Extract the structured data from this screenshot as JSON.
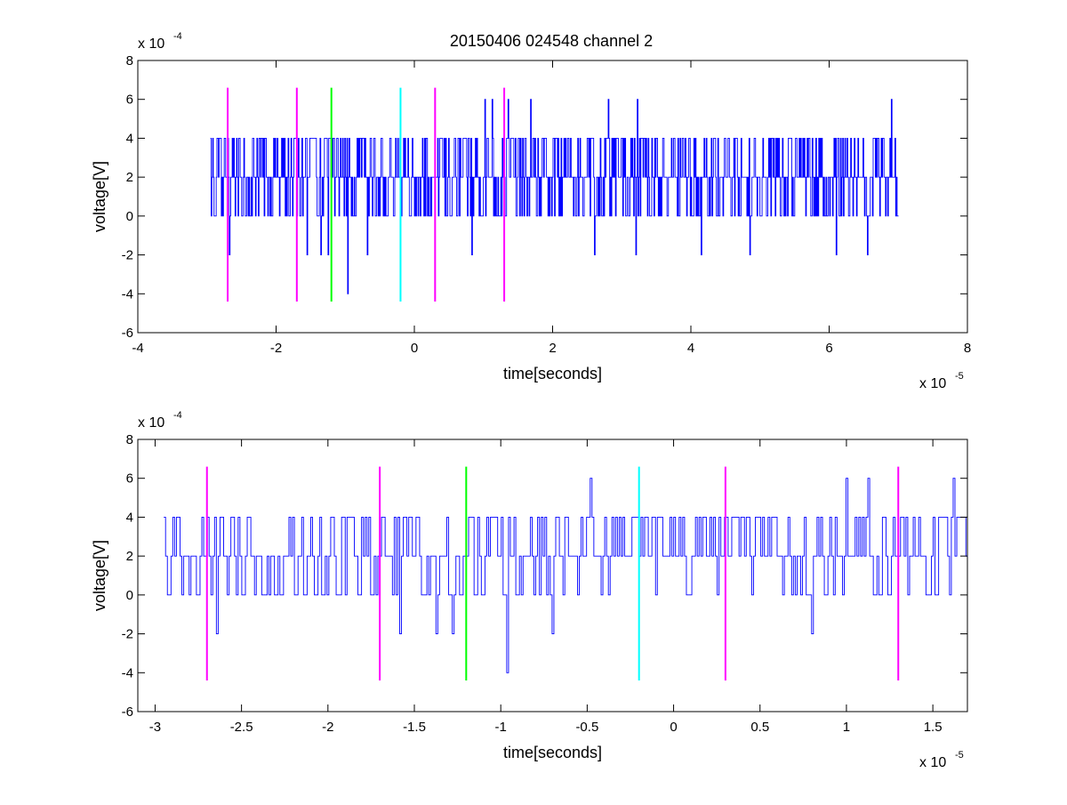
{
  "figure_title": "20150406 024548 channel 2",
  "colors": {
    "signal": "#0000ff",
    "marker_magenta": "#ff00ff",
    "marker_green": "#00ff00",
    "marker_cyan": "#00ffff",
    "axes": "#000000",
    "background": "#ffffff"
  },
  "chart_data": [
    {
      "type": "line",
      "title": "20150406 024548 channel 2",
      "xlabel": "time[seconds]",
      "ylabel": "voltage[V]",
      "x_exponent_base": "x 10",
      "x_exponent_power": "-5",
      "y_exponent_base": "x 10",
      "y_exponent_power": "-4",
      "xlim": [
        -4,
        8
      ],
      "ylim": [
        -6,
        8
      ],
      "xticks": [
        -4,
        -2,
        0,
        2,
        4,
        6,
        8
      ],
      "xtick_labels": [
        "-4",
        "-2",
        "0",
        "2",
        "4",
        "6",
        "8"
      ],
      "yticks": [
        -6,
        -4,
        -2,
        0,
        2,
        4,
        6,
        8
      ],
      "ytick_labels": [
        "-6",
        "-4",
        "-2",
        "0",
        "2",
        "4",
        "6",
        "8"
      ],
      "grid": false,
      "legend": "none",
      "signal": {
        "x_range": [
          -2.95,
          7.0
        ],
        "baseline_levels": [
          0,
          2,
          4
        ],
        "spikes": [
          {
            "x": -2.68,
            "y": -2
          },
          {
            "x": -1.55,
            "y": -2
          },
          {
            "x": -1.35,
            "y": -2
          },
          {
            "x": -1.25,
            "y": -2
          },
          {
            "x": -0.97,
            "y": -4
          },
          {
            "x": -0.68,
            "y": -2
          },
          {
            "x": 0.83,
            "y": -2
          },
          {
            "x": 0.9,
            "y": 4
          },
          {
            "x": 1.02,
            "y": 6
          },
          {
            "x": 1.12,
            "y": 6
          },
          {
            "x": 1.35,
            "y": 6
          },
          {
            "x": 1.68,
            "y": 6
          },
          {
            "x": 2.6,
            "y": -2
          },
          {
            "x": 2.8,
            "y": 6
          },
          {
            "x": 3.22,
            "y": 6
          },
          {
            "x": 3.2,
            "y": -2
          },
          {
            "x": 4.15,
            "y": -2
          },
          {
            "x": 4.85,
            "y": -2
          },
          {
            "x": 6.1,
            "y": -2
          },
          {
            "x": 6.55,
            "y": -2
          },
          {
            "x": 6.9,
            "y": 6
          }
        ]
      },
      "markers": [
        {
          "x": -2.7,
          "color": "magenta",
          "y_range": [
            -4.4,
            6.6
          ]
        },
        {
          "x": -1.7,
          "color": "magenta",
          "y_range": [
            -4.4,
            6.6
          ]
        },
        {
          "x": -1.2,
          "color": "green",
          "y_range": [
            -4.4,
            6.6
          ]
        },
        {
          "x": -0.2,
          "color": "cyan",
          "y_range": [
            -4.4,
            6.6
          ]
        },
        {
          "x": 0.3,
          "color": "magenta",
          "y_range": [
            -4.4,
            6.6
          ]
        },
        {
          "x": 1.3,
          "color": "magenta",
          "y_range": [
            -4.4,
            6.6
          ]
        }
      ]
    },
    {
      "type": "line",
      "title": "",
      "xlabel": "time[seconds]",
      "ylabel": "voltage[V]",
      "x_exponent_base": "x 10",
      "x_exponent_power": "-5",
      "y_exponent_base": "x 10",
      "y_exponent_power": "-4",
      "xlim": [
        -3.1,
        1.7
      ],
      "ylim": [
        -6,
        8
      ],
      "xticks": [
        -3,
        -2.5,
        -2,
        -1.5,
        -1,
        -0.5,
        0,
        0.5,
        1,
        1.5
      ],
      "xtick_labels": [
        "-3",
        "-2.5",
        "-2",
        "-1.5",
        "-1",
        "-0.5",
        "0",
        "0.5",
        "1",
        "1.5"
      ],
      "yticks": [
        -6,
        -4,
        -2,
        0,
        2,
        4,
        6,
        8
      ],
      "ytick_labels": [
        "-6",
        "-4",
        "-2",
        "0",
        "2",
        "4",
        "6",
        "8"
      ],
      "grid": false,
      "legend": "none",
      "signal": {
        "x_range": [
          -2.95,
          1.7
        ],
        "baseline_levels": [
          0,
          2,
          4
        ],
        "spikes": [
          {
            "x": -2.65,
            "y": -2
          },
          {
            "x": -1.58,
            "y": -2
          },
          {
            "x": -1.38,
            "y": -2
          },
          {
            "x": -1.28,
            "y": -2
          },
          {
            "x": -0.97,
            "y": -4
          },
          {
            "x": -0.7,
            "y": -2
          },
          {
            "x": -0.48,
            "y": 6
          },
          {
            "x": -0.22,
            "y": 4
          },
          {
            "x": 0.8,
            "y": -2
          },
          {
            "x": 1.0,
            "y": 6
          },
          {
            "x": 1.12,
            "y": 6
          },
          {
            "x": 1.62,
            "y": 6
          }
        ]
      },
      "markers": [
        {
          "x": -2.7,
          "color": "magenta",
          "y_range": [
            -4.4,
            6.6
          ]
        },
        {
          "x": -1.7,
          "color": "magenta",
          "y_range": [
            -4.4,
            6.6
          ]
        },
        {
          "x": -1.2,
          "color": "green",
          "y_range": [
            -4.4,
            6.6
          ]
        },
        {
          "x": -0.2,
          "color": "cyan",
          "y_range": [
            -4.4,
            6.6
          ]
        },
        {
          "x": 0.3,
          "color": "magenta",
          "y_range": [
            -4.4,
            6.6
          ]
        },
        {
          "x": 1.3,
          "color": "magenta",
          "y_range": [
            -4.4,
            6.6
          ]
        }
      ]
    }
  ]
}
